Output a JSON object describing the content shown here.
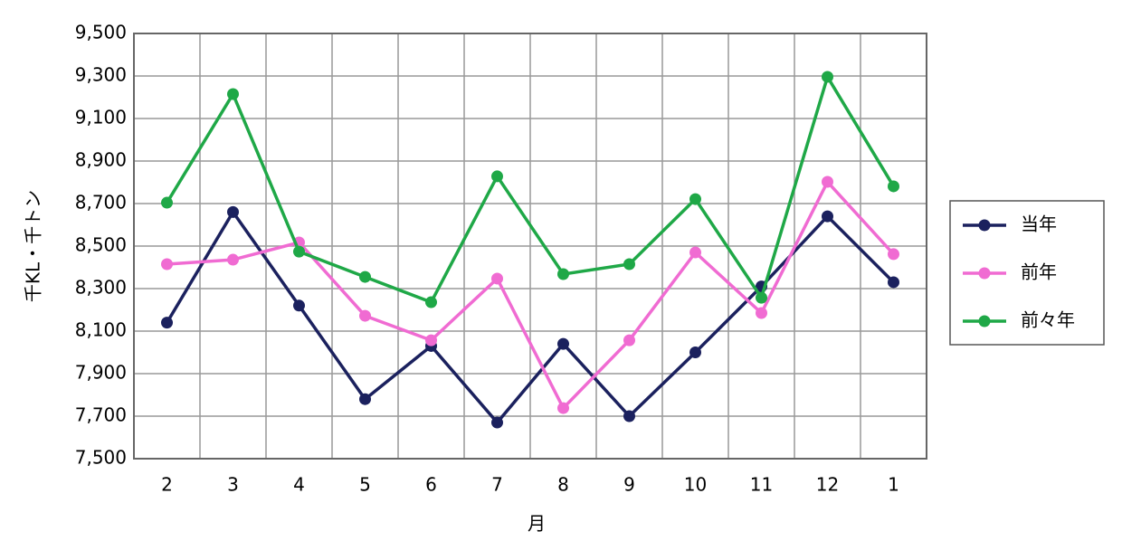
{
  "chart_data": {
    "type": "line",
    "x_label": "月",
    "y_label": "千KL・千トン",
    "categories": [
      "2",
      "3",
      "4",
      "5",
      "6",
      "7",
      "8",
      "9",
      "10",
      "11",
      "12",
      "1"
    ],
    "series": [
      {
        "name": "当年",
        "color": "#1b215e",
        "values": [
          8140,
          8660,
          8220,
          7780,
          8030,
          7670,
          8040,
          7700,
          8000,
          8310,
          8640,
          8330
        ]
      },
      {
        "name": "前年",
        "color": "#f06bd2",
        "values": [
          8415,
          8436,
          8517,
          8172,
          8057,
          8347,
          7738,
          8057,
          8470,
          8185,
          8802,
          8462
        ]
      },
      {
        "name": "前々年",
        "color": "#1fa847",
        "values": [
          8704,
          9215,
          8474,
          8355,
          8236,
          8828,
          8368,
          8415,
          8721,
          8257,
          9296,
          8781
        ]
      }
    ],
    "ylim": [
      7500,
      9500
    ],
    "yticks": [
      {
        "value": 7500,
        "label": "7,500"
      },
      {
        "value": 7700,
        "label": "7,700"
      },
      {
        "value": 7900,
        "label": "7,900"
      },
      {
        "value": 8100,
        "label": "8,100"
      },
      {
        "value": 8300,
        "label": "8,300"
      },
      {
        "value": 8500,
        "label": "8,500"
      },
      {
        "value": 8700,
        "label": "8,700"
      },
      {
        "value": 8900,
        "label": "8,900"
      },
      {
        "value": 9100,
        "label": "9,100"
      },
      {
        "value": 9300,
        "label": "9,300"
      },
      {
        "value": 9500,
        "label": "9,500"
      }
    ],
    "grid": true,
    "legend": "right"
  }
}
